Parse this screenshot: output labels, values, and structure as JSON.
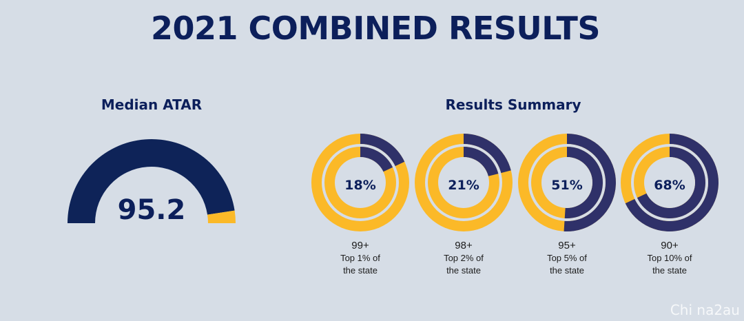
{
  "title": "2021 COMBINED RESULTS",
  "median": {
    "heading": "Median ATAR",
    "value": 95.2,
    "value_text": "95.2",
    "min": 0,
    "max": 100
  },
  "summary": {
    "heading": "Results Summary",
    "items": [
      {
        "percent": 18,
        "percent_text": "18%",
        "rank": "99+",
        "desc_line1": "Top 1% of",
        "desc_line2": "the state"
      },
      {
        "percent": 21,
        "percent_text": "21%",
        "rank": "98+",
        "desc_line1": "Top 2% of",
        "desc_line2": "the state"
      },
      {
        "percent": 51,
        "percent_text": "51%",
        "rank": "95+",
        "desc_line1": "Top 5% of",
        "desc_line2": "the state"
      },
      {
        "percent": 68,
        "percent_text": "68%",
        "rank": "90+",
        "desc_line1": "Top 10% of",
        "desc_line2": "the state"
      }
    ]
  },
  "colors": {
    "navy": "#0c1f5b",
    "gauge_navy": "#0e2358",
    "ring_navy": "#2f3169",
    "yellow": "#fbb928",
    "background": "#d6dde6"
  },
  "watermark": "Chi na2au",
  "chart_data": [
    {
      "type": "gauge",
      "title": "Median ATAR",
      "value": 95.2,
      "range": [
        0,
        100
      ]
    },
    {
      "type": "pie",
      "title": "Results Summary",
      "categories": [
        "99+",
        "98+",
        "95+",
        "90+"
      ],
      "values": [
        18,
        21,
        51,
        68
      ],
      "unit": "%"
    }
  ]
}
